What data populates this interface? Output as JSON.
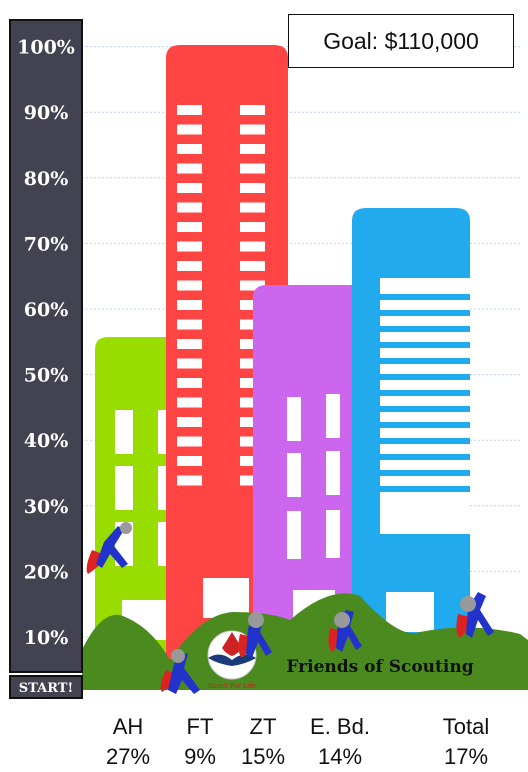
{
  "goal_label": "Goal: $110,000",
  "start_label": "START!",
  "banner_text": "Friends of Scouting",
  "emblem_text": "Scout For Life",
  "chart_data": {
    "type": "bar",
    "ylim": [
      0,
      100
    ],
    "y_ticks": [
      "10%",
      "20%",
      "30%",
      "40%",
      "50%",
      "60%",
      "70%",
      "80%",
      "90%",
      "100%"
    ],
    "categories": [
      "AH",
      "FT",
      "ZT",
      "E. Bd.",
      "Total"
    ],
    "values": [
      27,
      9,
      15,
      14,
      17
    ],
    "value_labels": [
      "27%",
      "9%",
      "15%",
      "14%",
      "17%"
    ],
    "building_colors": [
      "#99dd00",
      "#ff4444",
      "#cc66ee",
      "#22aaee"
    ],
    "ground_color": "#4a8a1f",
    "axis_color": "#424250"
  }
}
